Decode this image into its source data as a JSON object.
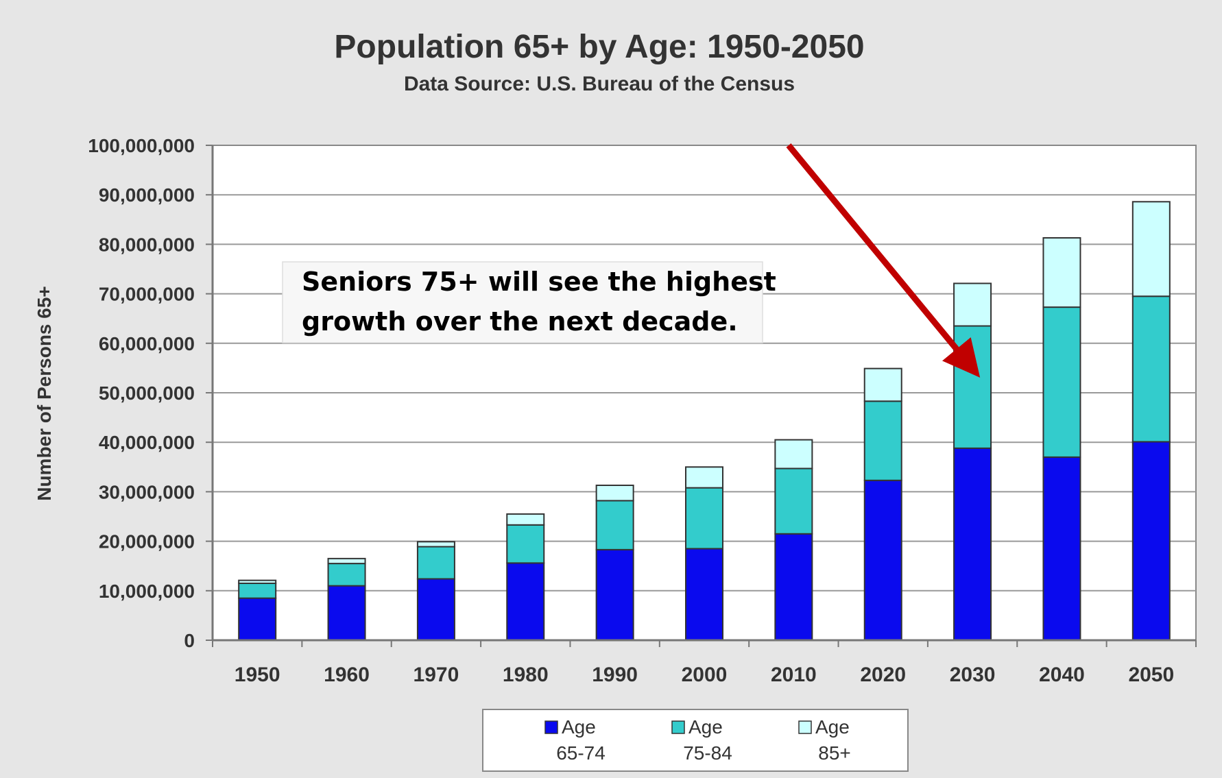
{
  "chart_data": {
    "type": "bar",
    "stacked": true,
    "title": "Population 65+ by Age: 1950-2050",
    "subtitle": "Data Source: U.S. Bureau of the Census",
    "ylabel": "Number of Persons 65+",
    "xlabel": "",
    "ylim": [
      0,
      100000000
    ],
    "yticks": [
      0,
      10000000,
      20000000,
      30000000,
      40000000,
      50000000,
      60000000,
      70000000,
      80000000,
      90000000,
      100000000
    ],
    "ytick_labels": [
      "0",
      "10,000,000",
      "20,000,000",
      "30,000,000",
      "40,000,000",
      "50,000,000",
      "60,000,000",
      "70,000,000",
      "80,000,000",
      "90,000,000",
      "100,000,000"
    ],
    "grid": true,
    "legend_position": "bottom",
    "categories": [
      "1950",
      "1960",
      "1970",
      "1980",
      "1990",
      "2000",
      "2010",
      "2020",
      "2030",
      "2040",
      "2050"
    ],
    "series": [
      {
        "name": "Age 65-74",
        "label_lines": [
          "Age",
          "65-74"
        ],
        "color": "#0a0aee",
        "values": [
          8500000,
          11000000,
          12400000,
          15600000,
          18300000,
          18500000,
          21500000,
          32300000,
          38800000,
          37000000,
          40100000
        ]
      },
      {
        "name": "Age 75-84",
        "label_lines": [
          "Age",
          "75-84"
        ],
        "color": "#33cccc",
        "values": [
          3000000,
          4500000,
          6500000,
          7700000,
          9900000,
          12300000,
          13200000,
          16000000,
          24700000,
          30300000,
          29400000
        ]
      },
      {
        "name": "Age 85+",
        "label_lines": [
          "Age",
          "85+"
        ],
        "color": "#ccffff",
        "values": [
          600000,
          1000000,
          1000000,
          2200000,
          3100000,
          4200000,
          5800000,
          6600000,
          8600000,
          14000000,
          19100000
        ]
      }
    ],
    "annotation": {
      "lines": [
        "Seniors 75+ will see the highest",
        "growth over the next decade."
      ],
      "arrow_color": "#c00000",
      "points_to": "2030"
    }
  }
}
